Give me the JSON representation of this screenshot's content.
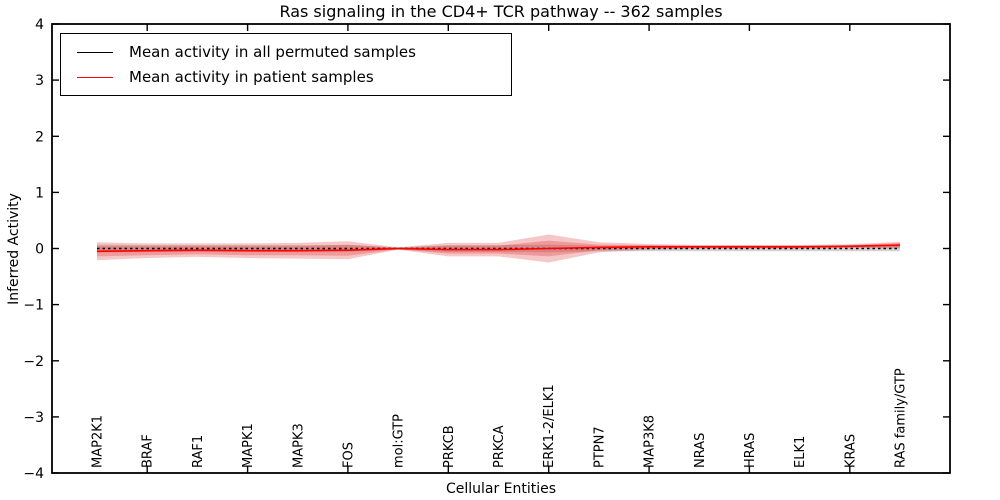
{
  "figure": {
    "title": "Ras signaling in the CD4+ TCR pathway -- 362 samples",
    "xlabel": "Cellular Entities",
    "ylabel": "Inferred Activity"
  },
  "legend": {
    "items": [
      {
        "label": "Mean activity in all permuted samples",
        "color": "#000000"
      },
      {
        "label": "Mean activity in patient samples",
        "color": "#ff0000"
      }
    ]
  },
  "chart_data": {
    "type": "line",
    "title": "Ras signaling in the CD4+ TCR pathway -- 362 samples",
    "xlabel": "Cellular Entities",
    "ylabel": "Inferred Activity",
    "ylim": [
      -4,
      4
    ],
    "yticks": [
      -4,
      -3,
      -2,
      -1,
      0,
      1,
      2,
      3,
      4
    ],
    "grid": false,
    "legend_position": "upper left",
    "categories": [
      "MAP2K1",
      "BRAF",
      "RAF1",
      "MAPK1",
      "MAPK3",
      "FOS",
      "mol:GTP",
      "PRKCB",
      "PRKCA",
      "ERK1-2/ELK1",
      "PTPN7",
      "MAP3K8",
      "NRAS",
      "HRAS",
      "ELK1",
      "KRAS",
      "RAS family/GTP"
    ],
    "series": [
      {
        "name": "Mean activity in all permuted samples",
        "color": "#000000",
        "line_style": "dashed",
        "values": [
          0,
          0,
          0,
          0,
          0,
          0,
          0,
          0,
          0,
          0,
          0,
          0,
          0,
          0,
          0,
          0,
          0
        ]
      },
      {
        "name": "Mean activity in patient samples",
        "color": "#ff0000",
        "line_style": "solid",
        "values": [
          -0.05,
          -0.04,
          -0.03,
          -0.04,
          -0.04,
          -0.03,
          0.0,
          -0.02,
          -0.02,
          0.0,
          0.02,
          0.03,
          0.03,
          0.03,
          0.03,
          0.04,
          0.06
        ]
      }
    ],
    "bands": [
      {
        "name": "permuted samples std band",
        "color": "#808080",
        "opacity": 0.35,
        "center_series": 0,
        "half_widths": [
          0.07,
          0.06,
          0.06,
          0.06,
          0.06,
          0.06,
          0.02,
          0.06,
          0.06,
          0.07,
          0.05,
          0.05,
          0.05,
          0.05,
          0.05,
          0.05,
          0.05
        ]
      },
      {
        "name": "patient samples std band outer",
        "color": "#e03535",
        "opacity": 0.28,
        "center_series": 1,
        "half_widths": [
          0.16,
          0.13,
          0.12,
          0.13,
          0.14,
          0.16,
          0.02,
          0.12,
          0.12,
          0.25,
          0.09,
          0.05,
          0.035,
          0.035,
          0.035,
          0.035,
          0.06
        ]
      },
      {
        "name": "patient samples std band inner",
        "color": "#e03535",
        "opacity": 0.3,
        "center_series": 1,
        "half_widths": [
          0.09,
          0.08,
          0.07,
          0.08,
          0.08,
          0.1,
          0.012,
          0.07,
          0.07,
          0.14,
          0.05,
          0.03,
          0.02,
          0.02,
          0.02,
          0.02,
          0.04
        ]
      }
    ]
  }
}
